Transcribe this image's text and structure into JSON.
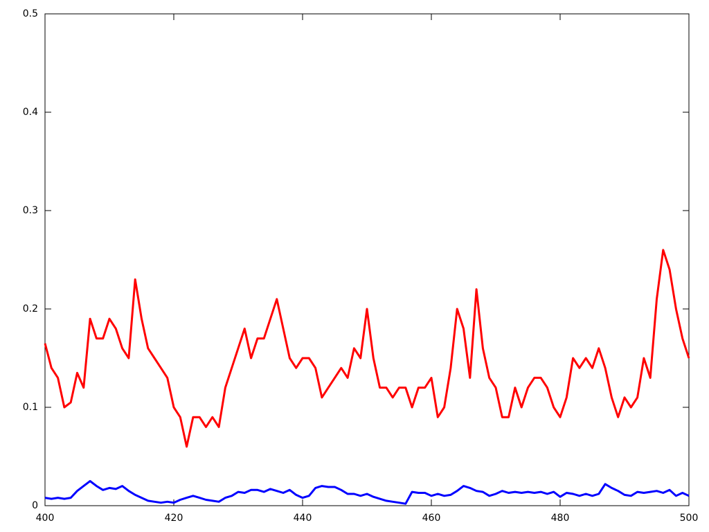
{
  "chart_data": {
    "type": "line",
    "x": [
      400,
      401,
      402,
      403,
      404,
      405,
      406,
      407,
      408,
      409,
      410,
      411,
      412,
      413,
      414,
      415,
      416,
      417,
      418,
      419,
      420,
      421,
      422,
      423,
      424,
      425,
      426,
      427,
      428,
      429,
      430,
      431,
      432,
      433,
      434,
      435,
      436,
      437,
      438,
      439,
      440,
      441,
      442,
      443,
      444,
      445,
      446,
      447,
      448,
      449,
      450,
      451,
      452,
      453,
      454,
      455,
      456,
      457,
      458,
      459,
      460,
      461,
      462,
      463,
      464,
      465,
      466,
      467,
      468,
      469,
      470,
      471,
      472,
      473,
      474,
      475,
      476,
      477,
      478,
      479,
      480,
      481,
      482,
      483,
      484,
      485,
      486,
      487,
      488,
      489,
      490,
      491,
      492,
      493,
      494,
      495,
      496,
      497,
      498,
      499,
      500
    ],
    "series": [
      {
        "color": "#ff0000",
        "values": [
          0.165,
          0.14,
          0.13,
          0.1,
          0.105,
          0.135,
          0.12,
          0.19,
          0.17,
          0.17,
          0.19,
          0.18,
          0.16,
          0.15,
          0.23,
          0.19,
          0.16,
          0.15,
          0.14,
          0.13,
          0.1,
          0.09,
          0.06,
          0.09,
          0.09,
          0.08,
          0.09,
          0.08,
          0.12,
          0.14,
          0.16,
          0.18,
          0.15,
          0.17,
          0.17,
          0.19,
          0.21,
          0.18,
          0.15,
          0.14,
          0.15,
          0.15,
          0.14,
          0.11,
          0.12,
          0.13,
          0.14,
          0.13,
          0.16,
          0.15,
          0.2,
          0.15,
          0.12,
          0.12,
          0.11,
          0.12,
          0.12,
          0.1,
          0.12,
          0.12,
          0.13,
          0.09,
          0.1,
          0.14,
          0.2,
          0.18,
          0.13,
          0.22,
          0.16,
          0.13,
          0.12,
          0.09,
          0.09,
          0.12,
          0.1,
          0.12,
          0.13,
          0.13,
          0.12,
          0.1,
          0.09,
          0.11,
          0.15,
          0.14,
          0.15,
          0.14,
          0.16,
          0.14,
          0.11,
          0.09,
          0.11,
          0.1,
          0.11,
          0.15,
          0.13,
          0.21,
          0.26,
          0.24,
          0.2,
          0.17,
          0.15
        ]
      },
      {
        "color": "#0000ff",
        "values": [
          0.008,
          0.007,
          0.008,
          0.007,
          0.008,
          0.015,
          0.02,
          0.025,
          0.02,
          0.016,
          0.018,
          0.017,
          0.02,
          0.015,
          0.011,
          0.008,
          0.005,
          0.004,
          0.003,
          0.004,
          0.003,
          0.006,
          0.008,
          0.01,
          0.008,
          0.006,
          0.005,
          0.004,
          0.008,
          0.01,
          0.014,
          0.013,
          0.016,
          0.016,
          0.014,
          0.017,
          0.015,
          0.013,
          0.016,
          0.011,
          0.008,
          0.01,
          0.018,
          0.02,
          0.019,
          0.019,
          0.016,
          0.012,
          0.012,
          0.01,
          0.012,
          0.009,
          0.007,
          0.005,
          0.004,
          0.003,
          0.002,
          0.014,
          0.013,
          0.013,
          0.01,
          0.012,
          0.01,
          0.011,
          0.015,
          0.02,
          0.018,
          0.015,
          0.014,
          0.01,
          0.012,
          0.015,
          0.013,
          0.014,
          0.013,
          0.014,
          0.013,
          0.014,
          0.012,
          0.014,
          0.009,
          0.013,
          0.012,
          0.01,
          0.012,
          0.01,
          0.012,
          0.022,
          0.018,
          0.015,
          0.011,
          0.01,
          0.014,
          0.013,
          0.014,
          0.015,
          0.013,
          0.016,
          0.01,
          0.013,
          0.01
        ]
      }
    ],
    "xlim": [
      400,
      500
    ],
    "xticks": [
      400,
      420,
      440,
      460,
      480,
      500
    ],
    "ylim": [
      0,
      0.5
    ],
    "yticks": [
      0,
      0.1,
      0.2,
      0.3,
      0.4,
      0.5
    ]
  }
}
